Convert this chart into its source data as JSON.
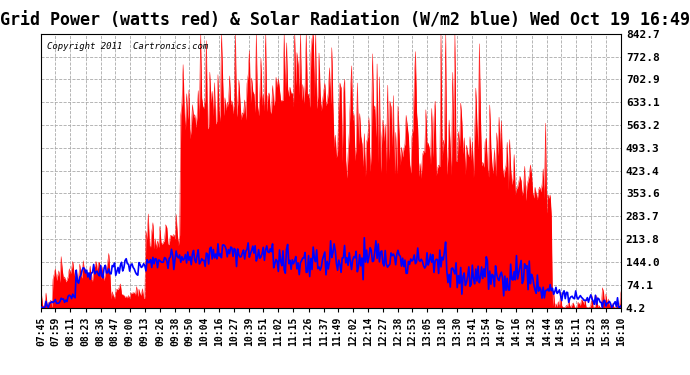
{
  "title": "Grid Power (watts red) & Solar Radiation (W/m2 blue) Wed Oct 19 16:49",
  "copyright": "Copyright 2011  Cartronics.com",
  "background_color": "#ffffff",
  "plot_bg_color": "#ffffff",
  "grid_color": "#aaaaaa",
  "yticks": [
    4.2,
    74.1,
    144.0,
    213.8,
    283.7,
    353.6,
    423.4,
    493.3,
    563.2,
    633.1,
    702.9,
    772.8,
    842.7
  ],
  "ymin": 4.2,
  "ymax": 842.7,
  "title_fontsize": 12,
  "xlabel_fontsize": 7,
  "ylabel_fontsize": 8,
  "red_color": "#ff0000",
  "blue_color": "#0000ff",
  "x_labels": [
    "07:45",
    "07:59",
    "08:11",
    "08:23",
    "08:36",
    "08:47",
    "09:00",
    "09:13",
    "09:26",
    "09:38",
    "09:50",
    "10:04",
    "10:16",
    "10:27",
    "10:39",
    "10:51",
    "11:02",
    "11:15",
    "11:26",
    "11:37",
    "11:49",
    "12:02",
    "12:14",
    "12:27",
    "12:38",
    "12:53",
    "13:05",
    "13:18",
    "13:30",
    "13:41",
    "13:54",
    "14:07",
    "14:16",
    "14:32",
    "14:44",
    "14:58",
    "15:11",
    "15:23",
    "15:38",
    "16:10"
  ]
}
